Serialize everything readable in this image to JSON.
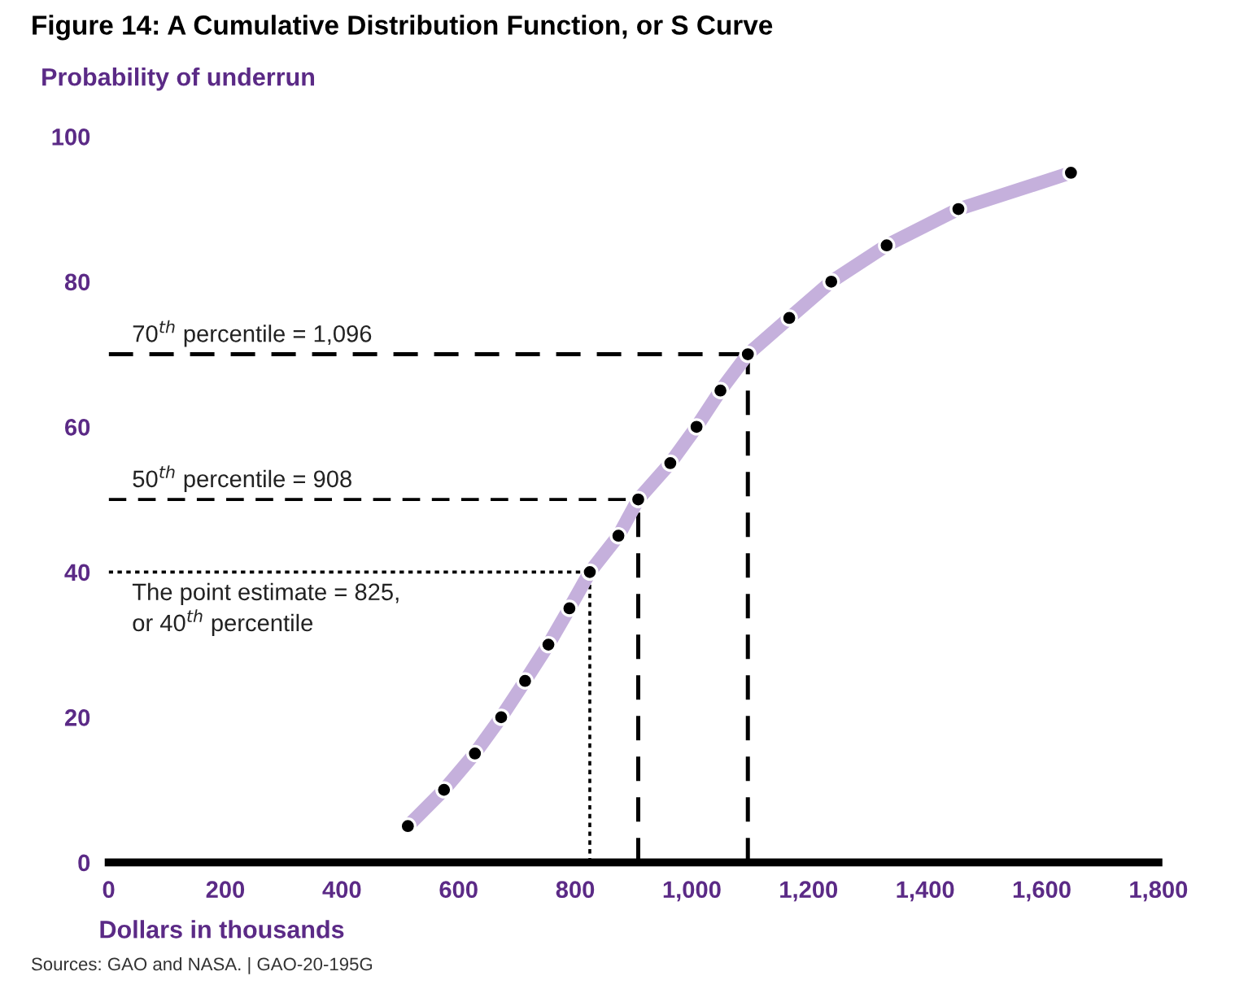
{
  "chart_data": {
    "type": "line",
    "title": "Figure 14: A Cumulative Distribution Function, or S Curve",
    "xlabel": "Dollars in thousands",
    "ylabel": "Probability of underrun",
    "x": [
      513,
      575,
      628,
      673,
      714,
      754,
      790,
      825,
      874,
      908,
      963,
      1008,
      1049,
      1096,
      1167,
      1239,
      1334,
      1457,
      1650
    ],
    "series": [
      {
        "color": "#c5b0dc",
        "values": [
          5,
          10,
          15,
          20,
          25,
          30,
          35,
          40,
          45,
          50,
          55,
          60,
          65,
          70,
          75,
          80,
          85,
          90,
          95
        ]
      }
    ],
    "marker": "circle",
    "xlim": [
      0,
      1800
    ],
    "ylim": [
      0,
      100
    ],
    "xticks": [
      0,
      200,
      400,
      600,
      800,
      {
        "value": 1000,
        "label": "1,000"
      },
      {
        "value": 1200,
        "label": "1,200"
      },
      {
        "value": 1400,
        "label": "1,400"
      },
      {
        "value": 1600,
        "label": "1,600"
      },
      {
        "value": 1800,
        "label": "1,800"
      }
    ],
    "yticks": [
      0,
      20,
      40,
      60,
      80,
      100
    ],
    "grid": false,
    "ref_lines": [
      {
        "axis": "y",
        "value": 70,
        "label": "70$^{th}$ percentile = 1,096",
        "color": "#000000",
        "line_style": "dashed"
      },
      {
        "axis": "x",
        "value": 1096,
        "label": null,
        "color": "#000000",
        "line_style": "dashed"
      },
      {
        "axis": "y",
        "value": 50,
        "label": "50$^{th}$ percentile = 908",
        "color": "#000000",
        "line_style": "dashed"
      },
      {
        "axis": "x",
        "value": 908,
        "label": null,
        "color": "#000000",
        "line_style": "dashed"
      },
      {
        "axis": "y",
        "value": 40,
        "label": "The point estimate = 825,\nor 40$^{th}$ percentile",
        "color": "#000000",
        "line_style": "dotted"
      },
      {
        "axis": "x",
        "value": 825,
        "label": null,
        "color": "#000000",
        "line_style": "dotted"
      }
    ],
    "annotations": [
      "Sources: GAO and NASA. | GAO-20-195G"
    ]
  }
}
